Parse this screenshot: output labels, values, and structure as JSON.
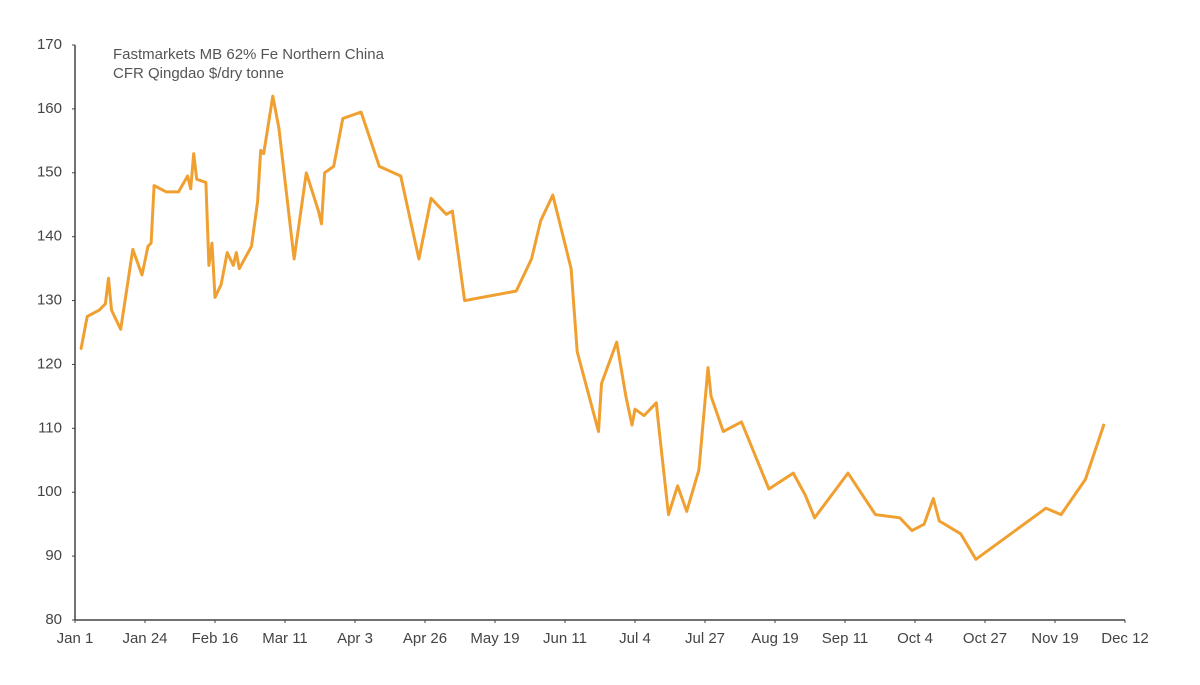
{
  "chart_data": {
    "type": "line",
    "title": [
      "Fastmarkets MB 62% Fe Northern China",
      "CFR Qingdao $/dry tonne"
    ],
    "color": "#f0a030",
    "x": [
      2,
      4,
      8,
      10,
      11,
      12,
      15,
      19,
      22,
      24,
      25,
      26,
      30,
      34,
      37,
      38,
      39,
      40,
      43,
      44,
      45,
      46,
      48,
      50,
      52,
      53,
      54,
      58,
      60,
      61,
      62,
      65,
      67,
      72,
      76,
      80,
      81,
      82,
      85,
      88,
      94,
      100,
      107,
      113,
      117,
      122,
      124,
      128,
      145,
      150,
      153,
      157,
      163,
      165,
      172,
      173,
      178,
      181,
      183,
      184,
      187,
      191,
      192,
      195,
      198,
      201,
      205,
      208,
      209,
      213,
      219,
      228,
      236,
      240,
      243,
      254,
      263,
      271,
      275,
      279,
      282,
      284,
      291,
      296,
      319,
      324,
      332,
      338
    ],
    "values": [
      122.5,
      127.5,
      128.5,
      129.5,
      133.5,
      128.5,
      125.5,
      138,
      134,
      138.5,
      139,
      148,
      147,
      147,
      149.5,
      147.5,
      153,
      149,
      148.5,
      135.5,
      139,
      130.5,
      132.5,
      137.5,
      135.5,
      137.5,
      135,
      138.5,
      145.5,
      153.5,
      153,
      162,
      157,
      136.5,
      150,
      144,
      142,
      150,
      151,
      158.5,
      159.5,
      151,
      149.5,
      136.5,
      146,
      143.5,
      144,
      130,
      131.5,
      136.5,
      142.5,
      146.5,
      135,
      122,
      109.5,
      117,
      123.5,
      115,
      110.5,
      113,
      112,
      114,
      109.5,
      96.5,
      101,
      97,
      103.5,
      119.5,
      115,
      109.5,
      111,
      100.5,
      103,
      99.5,
      96,
      103,
      96.5,
      96,
      94,
      95,
      99,
      95.5,
      93.5,
      89.5,
      97.5,
      96.5,
      102,
      110.5
    ],
    "xlim": [
      0,
      345
    ],
    "xticks": [
      {
        "value": 0,
        "label": "Jan 1"
      },
      {
        "value": 23,
        "label": "Jan 24"
      },
      {
        "value": 46,
        "label": "Feb 16"
      },
      {
        "value": 69,
        "label": "Mar 11"
      },
      {
        "value": 92,
        "label": "Apr 3"
      },
      {
        "value": 115,
        "label": "Apr 26"
      },
      {
        "value": 138,
        "label": "May 19"
      },
      {
        "value": 161,
        "label": "Jun 11"
      },
      {
        "value": 184,
        "label": "Jul 4"
      },
      {
        "value": 207,
        "label": "Jul 27"
      },
      {
        "value": 230,
        "label": "Aug 19"
      },
      {
        "value": 253,
        "label": "Sep 11"
      },
      {
        "value": 276,
        "label": "Oct 4"
      },
      {
        "value": 299,
        "label": "Oct 27"
      },
      {
        "value": 322,
        "label": "Nov 19"
      },
      {
        "value": 345,
        "label": "Dec 12"
      }
    ],
    "ylim": [
      80,
      170
    ],
    "yticks": [
      80,
      90,
      100,
      110,
      120,
      130,
      140,
      150,
      160,
      170
    ],
    "grid": false
  }
}
